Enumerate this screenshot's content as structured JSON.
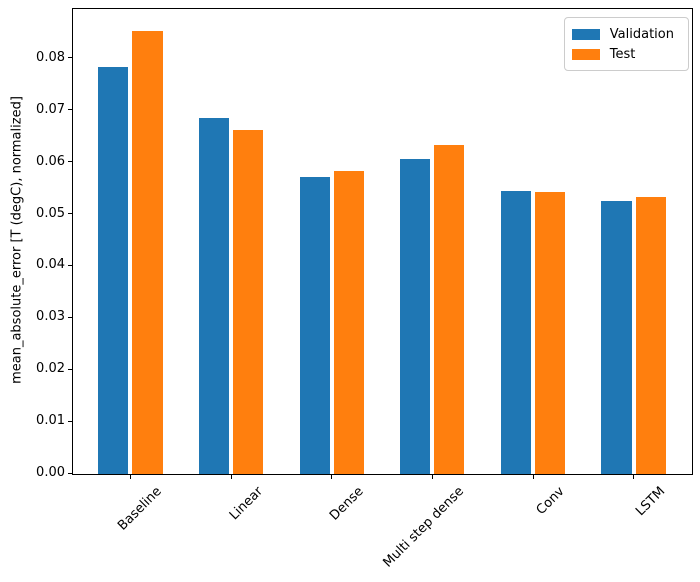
{
  "chart_data": {
    "type": "bar",
    "title": "",
    "xlabel": "",
    "ylabel": "mean_absolute_error [T (degC), normalized]",
    "categories": [
      "Baseline",
      "Linear",
      "Dense",
      "Multi step dense",
      "Conv",
      "LSTM"
    ],
    "series": [
      {
        "name": "Validation",
        "color": "#1f77b4",
        "values": [
          0.0785,
          0.0686,
          0.0573,
          0.0607,
          0.0546,
          0.0526
        ]
      },
      {
        "name": "Test",
        "color": "#ff7f0e",
        "values": [
          0.0853,
          0.0663,
          0.0583,
          0.0634,
          0.0544,
          0.0534
        ]
      }
    ],
    "ylim": [
      0,
      0.0896
    ],
    "xlim": [
      -0.57,
      5.58
    ],
    "yticks": [
      0.0,
      0.01,
      0.02,
      0.03,
      0.04,
      0.05,
      0.06,
      0.07,
      0.08
    ],
    "ytick_decimals": 2,
    "bar_width": 0.3,
    "bar_offset": 0.17,
    "xtick_rotation_deg": 45,
    "grid": false,
    "legend_position": "upper-right"
  }
}
